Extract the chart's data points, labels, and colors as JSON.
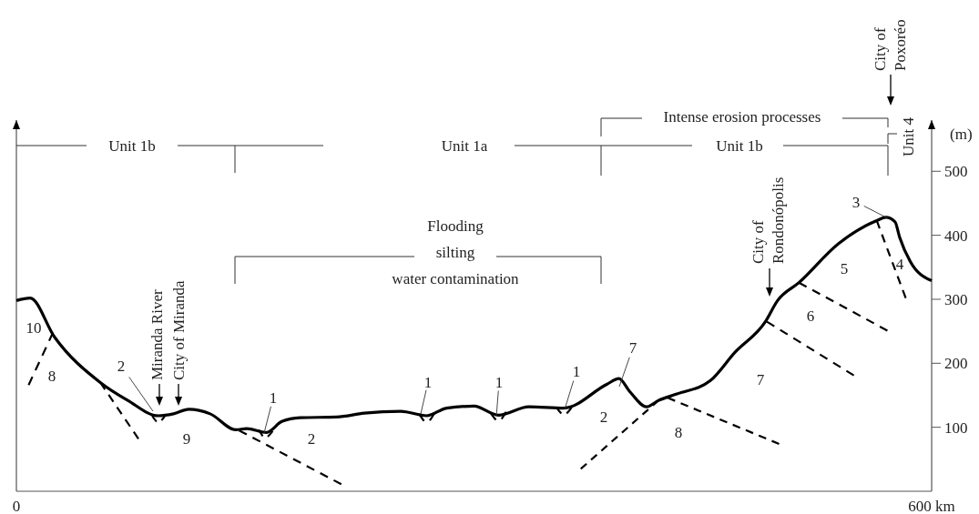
{
  "chart_data": {
    "type": "line",
    "ylabel": "(m)",
    "xlim": [
      0,
      600
    ],
    "xticks": [
      {
        "value": 0,
        "label": "0"
      },
      {
        "value": 600,
        "label": "600 km"
      }
    ],
    "ylim": [
      0,
      580
    ],
    "yticks": [
      100,
      200,
      300,
      400,
      500
    ],
    "series": [
      {
        "color": "#000000",
        "line_style": "solid",
        "x": [
          0,
          9,
          25,
          55,
          73,
          93,
          103,
          113,
          127,
          144,
          151,
          164,
          174,
          186,
          210,
          228,
          252,
          269,
          282,
          300,
          316,
          336,
          359,
          387,
          395,
          402,
          413,
          421,
          433,
          455,
          471,
          491,
          499,
          513,
          539,
          564,
          570,
          576,
          579,
          586,
          600
        ],
        "values": [
          298,
          302,
          241,
          170,
          142,
          118,
          121,
          128,
          121,
          96,
          98,
          92,
          109,
          115,
          116,
          122,
          125,
          118,
          130,
          133,
          119,
          132,
          130,
          167,
          176,
          156,
          132,
          142,
          152,
          173,
          217,
          265,
          298,
          326,
          387,
          423,
          428,
          421,
          397,
          359,
          329
        ]
      },
      {
        "color": "#000000",
        "line_style": "dashed",
        "x": [
          8,
          24
        ],
        "values": [
          166,
          248
        ]
      },
      {
        "color": "#000000",
        "line_style": "dashed",
        "x": [
          55,
          80
        ],
        "values": [
          170,
          82
        ]
      },
      {
        "color": "#000000",
        "line_style": "dashed",
        "x": [
          146,
          213
        ],
        "values": [
          95,
          11
        ]
      },
      {
        "color": "#000000",
        "line_style": "dashed",
        "x": [
          370,
          421
        ],
        "values": [
          35,
          142
        ]
      },
      {
        "color": "#000000",
        "line_style": "dashed",
        "x": [
          427,
          500
        ],
        "values": [
          146,
          74
        ]
      },
      {
        "color": "#000000",
        "line_style": "dashed",
        "x": [
          492,
          549
        ],
        "values": [
          265,
          181
        ]
      },
      {
        "color": "#000000",
        "line_style": "dashed",
        "x": [
          513,
          571
        ],
        "values": [
          326,
          251
        ]
      },
      {
        "color": "#000000",
        "line_style": "dashed",
        "x": [
          564,
          583
        ],
        "values": [
          423,
          302
        ]
      },
      {
        "color": "#000000",
        "line_style": "dashed",
        "x": [
          89,
          93,
          98
        ],
        "values": [
          118,
          108,
          120
        ]
      },
      {
        "color": "#000000",
        "line_style": "dashed",
        "x": [
          159,
          163,
          168
        ],
        "values": [
          96,
          84,
          94
        ]
      },
      {
        "color": "#000000",
        "line_style": "dashed",
        "x": [
          264,
          269,
          274
        ],
        "values": [
          121,
          108,
          122
        ]
      },
      {
        "color": "#000000",
        "line_style": "dashed",
        "x": [
          311,
          316,
          321
        ],
        "values": [
          122,
          110,
          124
        ]
      },
      {
        "color": "#000000",
        "line_style": "dashed",
        "x": [
          354,
          359,
          364
        ],
        "values": [
          131,
          120,
          131
        ]
      }
    ],
    "annotations": [
      "10",
      "8",
      "2",
      "9",
      "1",
      "2",
      "1",
      "1",
      "1",
      "2",
      "7",
      "8",
      "7",
      "6",
      "5",
      "3",
      "4",
      "Unit 1b",
      "Unit 1a",
      "Intense erosion processes",
      "Unit 1b",
      "Unit 4",
      "Flooding\nsilting\nwater contamination",
      "Miranda River",
      "City of Miranda",
      "City of\nRondonópolis",
      "City of\nPoxoréo"
    ]
  }
}
